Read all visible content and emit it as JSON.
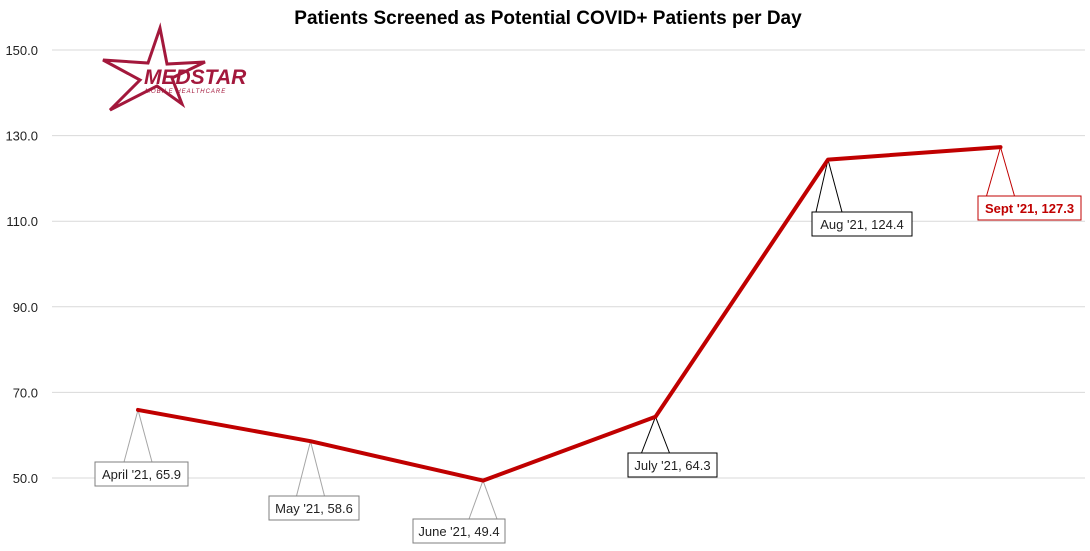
{
  "chart_data": {
    "type": "line",
    "title": "Patients Screened as Potential COVID+ Patients per Day",
    "categories": [
      "April '21",
      "May '21",
      "June '21",
      "July '21",
      "Aug '21",
      "Sept '21"
    ],
    "series": [
      {
        "values": [
          65.9,
          58.6,
          49.4,
          64.3,
          124.4,
          127.3
        ]
      }
    ],
    "data_labels": [
      "April '21, 65.9",
      "May '21, 58.6",
      "June '21, 49.4",
      "July '21, 64.3",
      "Aug '21, 124.4",
      "Sept '21, 127.3"
    ],
    "y_ticks": [
      "50.0",
      "70.0",
      "90.0",
      "110.0",
      "130.0",
      "150.0"
    ],
    "ylim": [
      50,
      150
    ],
    "grid": true,
    "line_color": "#c00000",
    "highlight_color": "#c00000"
  },
  "logo": {
    "name": "MedStar logo",
    "word": "MEDSTAR",
    "sub": "MOBILE HEALTHCARE",
    "color": "#a3183c"
  }
}
